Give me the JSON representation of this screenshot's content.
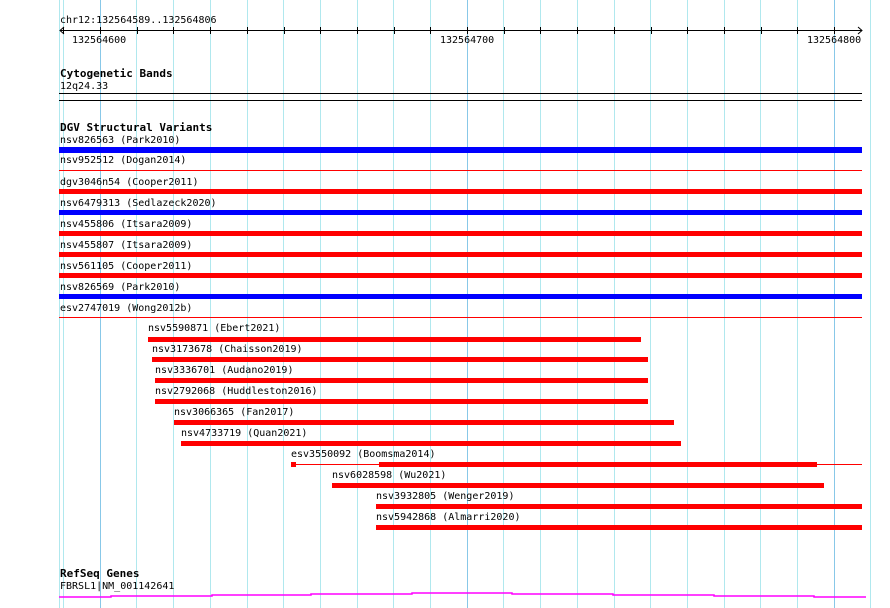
{
  "ruler": {
    "region": "chr12:132564589..132564806",
    "ticks": [
      "132564600",
      "132564700",
      "132564800"
    ]
  },
  "cytoband": {
    "title": "Cytogenetic Bands",
    "band": "12q24.33"
  },
  "dgv": {
    "title": "DGV Structural Variants",
    "features": [
      {
        "label": "nsv826563 (Park2010)",
        "color": "#0000ff"
      },
      {
        "label": "nsv952512 (Dogan2014)",
        "color": "#ff0000"
      },
      {
        "label": "dgv3046n54 (Cooper2011)",
        "color": "#ff0000"
      },
      {
        "label": "nsv6479313 (Sedlazeck2020)",
        "color": "#0000ff"
      },
      {
        "label": "nsv455806 (Itsara2009)",
        "color": "#ff0000"
      },
      {
        "label": "nsv455807 (Itsara2009)",
        "color": "#ff0000"
      },
      {
        "label": "nsv561105 (Cooper2011)",
        "color": "#ff0000"
      },
      {
        "label": "nsv826569 (Park2010)",
        "color": "#0000ff"
      },
      {
        "label": "esv2747019 (Wong2012b)",
        "color": "#ff0000"
      },
      {
        "label": "nsv5590871 (Ebert2021)",
        "color": "#ff0000"
      },
      {
        "label": "nsv3173678 (Chaisson2019)",
        "color": "#ff0000"
      },
      {
        "label": "nsv3336701 (Audano2019)",
        "color": "#ff0000"
      },
      {
        "label": "nsv2792068 (Huddleston2016)",
        "color": "#ff0000"
      },
      {
        "label": "nsv3066365 (Fan2017)",
        "color": "#ff0000"
      },
      {
        "label": "nsv4733719 (Quan2021)",
        "color": "#ff0000"
      },
      {
        "label": "esv3550092 (Boomsma2014)",
        "color": "#ff0000"
      },
      {
        "label": "nsv6028598 (Wu2021)",
        "color": "#ff0000"
      },
      {
        "label": "nsv3932805 (Wenger2019)",
        "color": "#ff0000"
      },
      {
        "label": "nsv5942868 (Almarri2020)",
        "color": "#ff0000"
      }
    ]
  },
  "refseq": {
    "title": "RefSeq Genes",
    "gene": "FBRSL1|NM_001142641",
    "color": "#ff00ff"
  }
}
